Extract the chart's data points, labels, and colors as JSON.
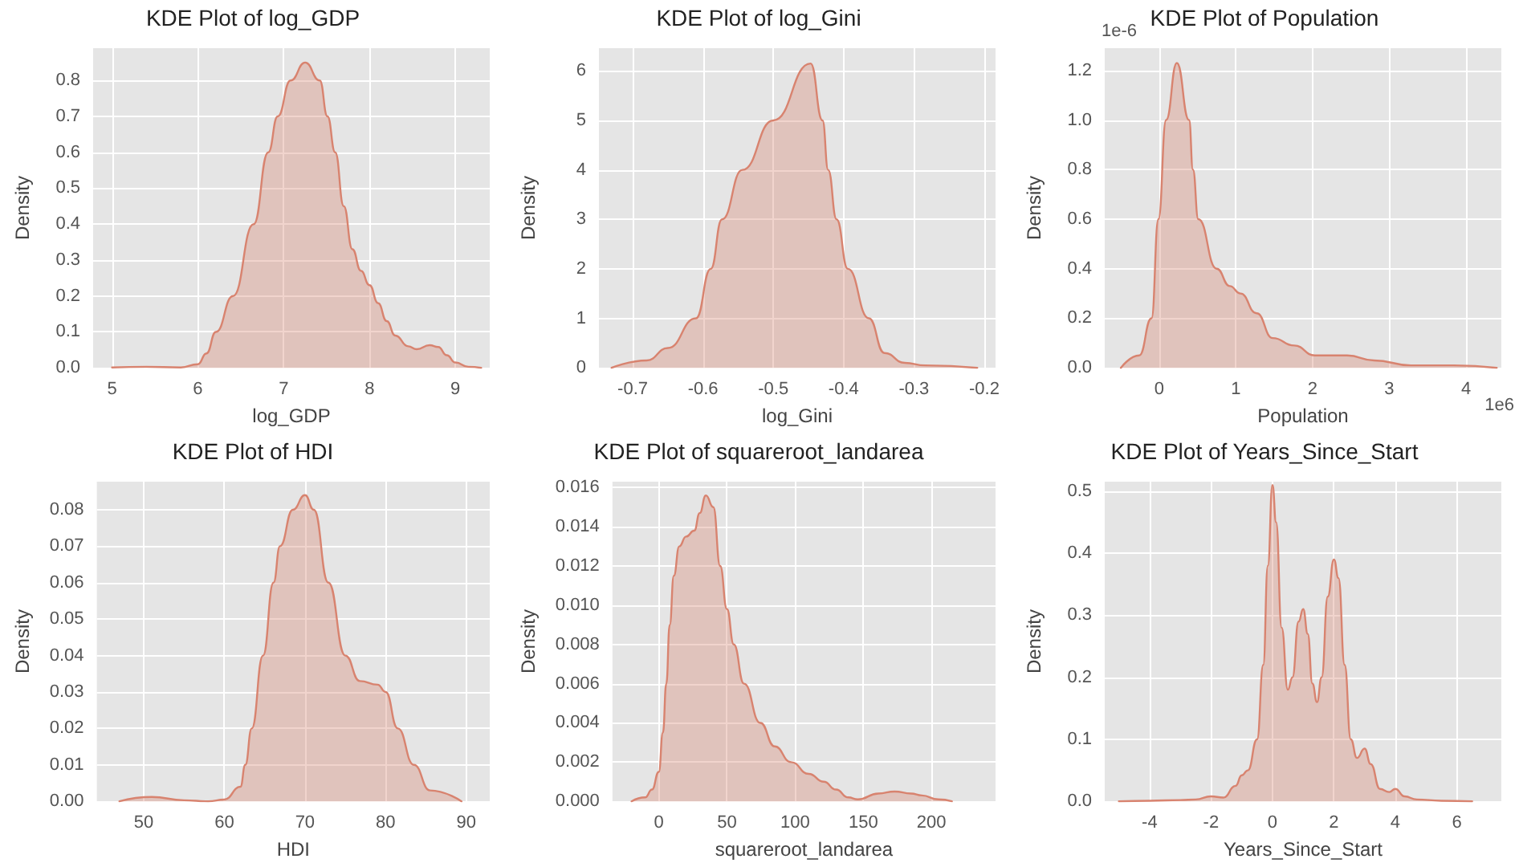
{
  "chart_data": [
    {
      "type": "area",
      "title": "KDE Plot of log_GDP",
      "xlabel": "log_GDP",
      "ylabel": "Density",
      "grid": true,
      "xlim": [
        4.78,
        9.4
      ],
      "ylim": [
        0,
        0.89
      ],
      "xticks": [
        5,
        6,
        7,
        8,
        9
      ],
      "yticks": [
        {
          "value": 0,
          "label": "0.0"
        },
        0.1,
        0.2,
        0.3,
        0.4,
        0.5,
        0.6,
        0.7,
        0.8
      ],
      "series": [
        {
          "color": "#d8836f",
          "x": [
            5.0,
            5.4,
            5.8,
            6.0,
            6.1,
            6.21,
            6.41,
            6.65,
            6.82,
            6.93,
            7.08,
            7.25,
            7.42,
            7.51,
            7.6,
            7.7,
            7.8,
            7.9,
            8.0,
            8.1,
            8.2,
            8.3,
            8.45,
            8.55,
            8.7,
            8.8,
            8.9,
            9.0,
            9.15,
            9.3
          ],
          "values": [
            0.001,
            0.003,
            0.001,
            0.01,
            0.04,
            0.1,
            0.2,
            0.4,
            0.6,
            0.7,
            0.8,
            0.85,
            0.8,
            0.7,
            0.6,
            0.45,
            0.33,
            0.27,
            0.23,
            0.18,
            0.13,
            0.09,
            0.06,
            0.052,
            0.063,
            0.058,
            0.035,
            0.015,
            0.003,
            0
          ]
        }
      ]
    },
    {
      "type": "area",
      "title": "KDE Plot of log_Gini",
      "xlabel": "log_Gini",
      "ylabel": "Density",
      "grid": true,
      "xlim": [
        -0.748,
        -0.184
      ],
      "ylim": [
        0,
        6.46
      ],
      "xticks": [
        -0.7,
        -0.6,
        -0.5,
        -0.4,
        -0.3,
        -0.2
      ],
      "yticks": [
        0,
        1,
        2,
        3,
        4,
        5,
        6
      ],
      "series": [
        {
          "color": "#d8836f",
          "x": [
            -0.73,
            -0.68,
            -0.65,
            -0.61,
            -0.589,
            -0.573,
            -0.544,
            -0.5,
            -0.447,
            -0.43,
            -0.422,
            -0.41,
            -0.394,
            -0.364,
            -0.342,
            -0.313,
            -0.284,
            -0.21
          ],
          "values": [
            0,
            0.15,
            0.4,
            1,
            2,
            3,
            4,
            5,
            6.15,
            5,
            4,
            3,
            2,
            1,
            0.3,
            0.1,
            0.05,
            0
          ]
        }
      ]
    },
    {
      "type": "area",
      "title": "KDE Plot of Population",
      "xlabel": "Population",
      "ylabel": "Density",
      "grid": true,
      "xlim": [
        -0.71,
        4.46
      ],
      "ylim": [
        0,
        1.29
      ],
      "xticks": [
        0,
        1,
        2,
        3,
        4
      ],
      "yticks": [
        {
          "value": 0,
          "label": "0.0"
        },
        0.2,
        0.4,
        0.6,
        0.8,
        {
          "value": 1,
          "label": "1.0"
        },
        1.2
      ],
      "annotations": [
        "1e-6",
        "1e6"
      ],
      "series": [
        {
          "color": "#d8836f",
          "x": [
            -0.5,
            -0.26,
            -0.1,
            -0.01,
            0.09,
            0.23,
            0.39,
            0.44,
            0.51,
            0.75,
            0.92,
            1.06,
            1.27,
            1.48,
            1.76,
            2.03,
            2.45,
            2.8,
            3.28,
            3.84,
            4.4
          ],
          "values": [
            0,
            0.05,
            0.2,
            0.6,
            1.0,
            1.23,
            1.0,
            0.8,
            0.6,
            0.4,
            0.33,
            0.3,
            0.22,
            0.12,
            0.09,
            0.05,
            0.05,
            0.03,
            0.01,
            0.01,
            0
          ]
        }
      ]
    },
    {
      "type": "area",
      "title": "KDE Plot of HDI",
      "xlabel": "HDI",
      "ylabel": "Density",
      "grid": true,
      "xlim": [
        44.2,
        92.9
      ],
      "ylim": [
        0,
        0.0877
      ],
      "xticks": [
        50,
        60,
        70,
        80,
        90
      ],
      "yticks": [
        {
          "value": 0,
          "label": "0.00"
        },
        0.01,
        0.02,
        0.03,
        0.04,
        0.05,
        0.06,
        0.07,
        0.08
      ],
      "series": [
        {
          "color": "#d8836f",
          "x": [
            47,
            51,
            55,
            58,
            60,
            62,
            62.6,
            63.4,
            64.8,
            66.1,
            66.9,
            68.5,
            70,
            71.1,
            72.9,
            75,
            76.8,
            79,
            80,
            81.5,
            83.5,
            85.5,
            89.4
          ],
          "values": [
            0,
            0.0012,
            0.0003,
            0,
            0.0005,
            0.004,
            0.01,
            0.02,
            0.04,
            0.06,
            0.07,
            0.08,
            0.084,
            0.08,
            0.06,
            0.04,
            0.033,
            0.032,
            0.03,
            0.02,
            0.01,
            0.003,
            0
          ]
        }
      ]
    },
    {
      "type": "area",
      "title": "KDE Plot of squareroot_landarea",
      "xlabel": "squareroot_landarea",
      "ylabel": "Density",
      "grid": true,
      "xlim": [
        -34,
        247
      ],
      "ylim": [
        0,
        0.0163
      ],
      "xticks": [
        0,
        50,
        100,
        150,
        200
      ],
      "yticks": [
        {
          "value": 0,
          "label": "0.000"
        },
        0.002,
        0.004,
        0.006,
        0.008,
        {
          "value": 0.01,
          "label": "0.010"
        },
        0.012,
        0.014,
        0.016
      ],
      "series": [
        {
          "color": "#d8836f",
          "x": [
            -20,
            -10,
            -5,
            0,
            3,
            5.5,
            8,
            11,
            15,
            20,
            26,
            30,
            34.5,
            40,
            45,
            50,
            55,
            62.5,
            74.5,
            85,
            97,
            110,
            121,
            130,
            139,
            146,
            161,
            173,
            185,
            193,
            205,
            215
          ],
          "values": [
            0,
            0.0002,
            0.0006,
            0.0015,
            0.0035,
            0.006,
            0.009,
            0.0115,
            0.013,
            0.0135,
            0.0138,
            0.0147,
            0.0156,
            0.015,
            0.012,
            0.0098,
            0.008,
            0.006,
            0.004,
            0.0028,
            0.002,
            0.0014,
            0.001,
            0.0006,
            0.0002,
            0.0001,
            0.0004,
            0.0005,
            0.0004,
            0.0003,
            0.0001,
            0
          ]
        }
      ]
    },
    {
      "type": "area",
      "title": "KDE Plot of Years_Since_Start",
      "xlabel": "Years_Since_Start",
      "ylabel": "Density",
      "grid": true,
      "xlim": [
        -5.46,
        7.45
      ],
      "ylim": [
        0,
        0.5155
      ],
      "xticks": [
        -4,
        -2,
        0,
        2,
        4,
        6
      ],
      "yticks": [
        {
          "value": 0,
          "label": "0.0"
        },
        0.1,
        0.2,
        0.3,
        0.4,
        0.5
      ],
      "series": [
        {
          "color": "#d8836f",
          "x": [
            -5,
            -4,
            -3,
            -2.5,
            -2,
            -1.6,
            -1.2,
            -1,
            -0.8,
            -0.5,
            -0.3,
            -0.15,
            0,
            0.12,
            0.3,
            0.5,
            0.65,
            0.85,
            1,
            1.15,
            1.3,
            1.45,
            1.6,
            1.8,
            2,
            2.15,
            2.35,
            2.55,
            2.75,
            3,
            3.2,
            3.5,
            3.8,
            4,
            4.3,
            4.7,
            5.5,
            6.5
          ],
          "values": [
            0,
            0.001,
            0.002,
            0.003,
            0.008,
            0.006,
            0.025,
            0.042,
            0.05,
            0.1,
            0.22,
            0.38,
            0.51,
            0.45,
            0.28,
            0.18,
            0.2,
            0.29,
            0.31,
            0.27,
            0.19,
            0.16,
            0.2,
            0.33,
            0.39,
            0.36,
            0.22,
            0.1,
            0.07,
            0.085,
            0.06,
            0.02,
            0.015,
            0.02,
            0.008,
            0.003,
            0.001,
            0
          ]
        }
      ]
    }
  ]
}
